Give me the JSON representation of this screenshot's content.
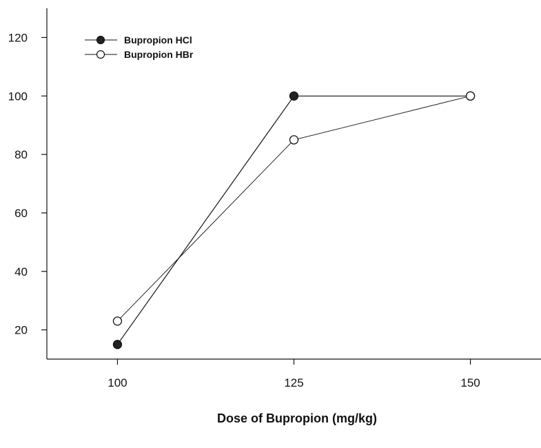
{
  "chart_data": {
    "type": "line",
    "title": "",
    "xlabel": "Dose of Bupropion (mg/kg)",
    "ylabel": "",
    "categories": [
      "100",
      "125",
      "150"
    ],
    "x": [
      100,
      125,
      150
    ],
    "xlim": [
      90,
      160
    ],
    "ylim": [
      10,
      130
    ],
    "yticks": [
      20,
      40,
      60,
      80,
      100,
      120
    ],
    "grid": false,
    "legend_position": "top-left",
    "series": [
      {
        "name": "Bupropion HCl",
        "marker": "filled-circle",
        "color": "#111111",
        "values": [
          15,
          100,
          100
        ]
      },
      {
        "name": "Bupropion HBr",
        "marker": "open-circle",
        "color": "#111111",
        "values": [
          23,
          85,
          100
        ]
      }
    ]
  }
}
